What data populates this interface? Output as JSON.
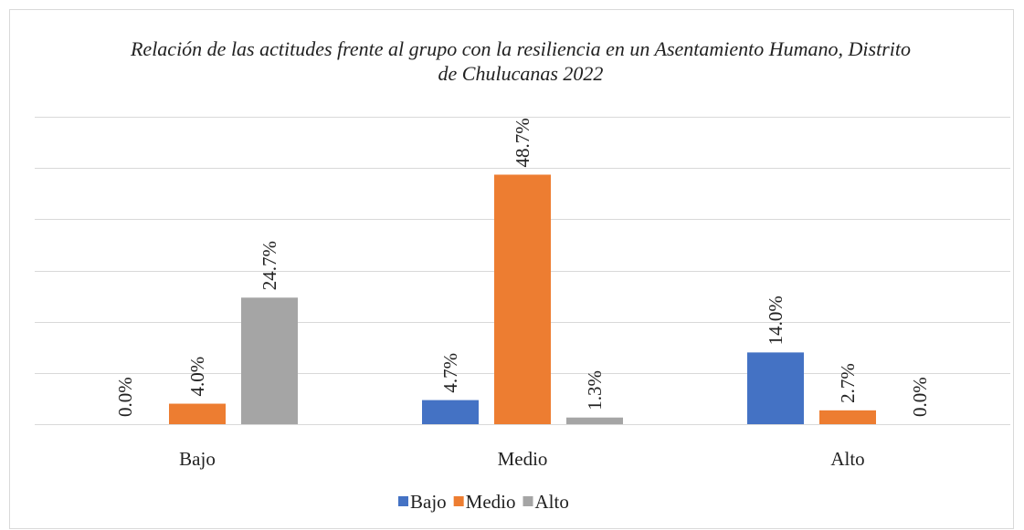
{
  "chart_data": {
    "type": "bar",
    "title": "Relación de las actitudes frente al grupo con la resiliencia en un Asentamiento Humano, Distrito de Chulucanas 2022",
    "categories": [
      "Bajo",
      "Medio",
      "Alto"
    ],
    "series": [
      {
        "name": "Bajo",
        "color": "#4472c4",
        "values": [
          0.0,
          4.7,
          14.0
        ],
        "value_labels": [
          "0.0%",
          "4.7%",
          "14.0%"
        ]
      },
      {
        "name": "Medio",
        "color": "#ed7d31",
        "values": [
          4.0,
          48.7,
          2.7
        ],
        "value_labels": [
          "4.0%",
          "48.7%",
          "2.7%"
        ]
      },
      {
        "name": "Alto",
        "color": "#a5a5a5",
        "values": [
          24.7,
          1.3,
          0.0
        ],
        "value_labels": [
          "24.7%",
          "1.3%",
          "0.0%"
        ]
      }
    ],
    "ylim": [
      0,
      60
    ],
    "yticks": [
      0,
      10,
      20,
      30,
      40,
      50,
      60
    ],
    "grid": true,
    "legend": "bottom"
  }
}
